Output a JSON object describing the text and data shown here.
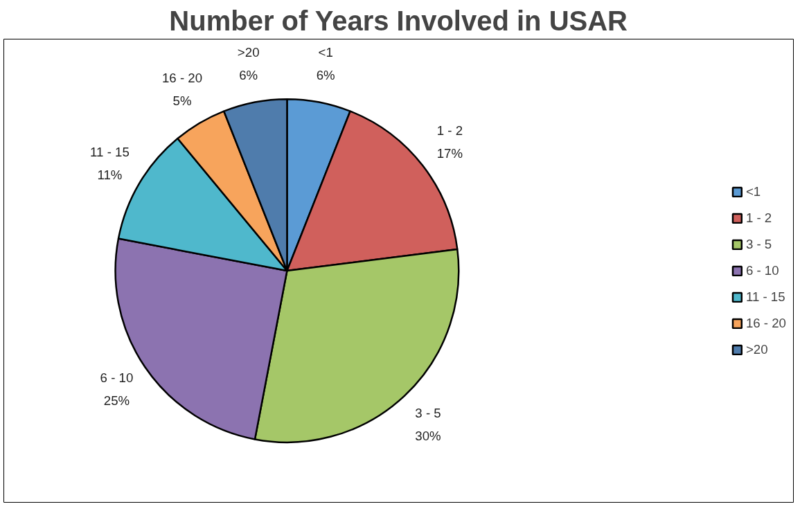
{
  "chart_data": {
    "type": "pie",
    "title": "Number of Years Involved in USAR",
    "categories": [
      "<1",
      "1 - 2",
      "3 - 5",
      "6 - 10",
      "11 - 15",
      "16 - 20",
      ">20"
    ],
    "values": [
      6,
      17,
      30,
      25,
      11,
      5,
      6
    ],
    "value_labels": [
      "6%",
      "17%",
      "30%",
      "25%",
      "11%",
      "5%",
      "6%"
    ],
    "colors": [
      "#5b9bd5",
      "#d0605c",
      "#a5c768",
      "#8c73b0",
      "#4fb8cc",
      "#f7a45c",
      "#4f7cac"
    ],
    "legend": "right"
  }
}
